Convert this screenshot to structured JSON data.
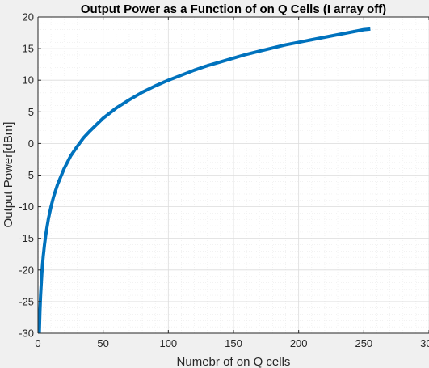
{
  "chart_data": {
    "type": "line",
    "title": "Output Power as a Function of on Q Cells (I array off)",
    "xlabel": "Numebr of on Q cells",
    "ylabel": "Output Power[dBm]",
    "xlim": [
      0,
      300
    ],
    "ylim": [
      -30,
      20
    ],
    "xticks": [
      0,
      50,
      100,
      150,
      200,
      250,
      300
    ],
    "yticks": [
      -30,
      -25,
      -20,
      -15,
      -10,
      -5,
      0,
      5,
      10,
      15,
      20
    ],
    "xtick_labels": [
      "0",
      "50",
      "100",
      "150",
      "200",
      "250",
      "300"
    ],
    "ytick_labels": [
      "-30",
      "-25",
      "-20",
      "-15",
      "-10",
      "-5",
      "0",
      "5",
      "10",
      "15",
      "20"
    ],
    "grid": true,
    "minor_grid": true,
    "series": [
      {
        "name": "Output Power",
        "color": "#0072bd",
        "x": [
          1,
          1.5,
          2,
          3,
          4,
          5,
          6,
          8,
          10,
          12,
          15,
          20,
          25,
          30,
          35,
          40,
          50,
          60,
          70,
          80,
          90,
          100,
          110,
          120,
          130,
          140,
          150,
          160,
          170,
          180,
          190,
          200,
          210,
          220,
          230,
          240,
          250,
          255
        ],
        "y": [
          -30,
          -26.5,
          -24,
          -20.4,
          -17.9,
          -16.0,
          -14.4,
          -11.9,
          -10.0,
          -8.4,
          -6.5,
          -4.0,
          -2.0,
          -0.5,
          0.9,
          2.0,
          4.0,
          5.6,
          6.9,
          8.1,
          9.1,
          10.0,
          10.8,
          11.6,
          12.3,
          12.9,
          13.5,
          14.1,
          14.6,
          15.1,
          15.6,
          16.0,
          16.4,
          16.8,
          17.2,
          17.6,
          18.0,
          18.1
        ]
      }
    ]
  }
}
